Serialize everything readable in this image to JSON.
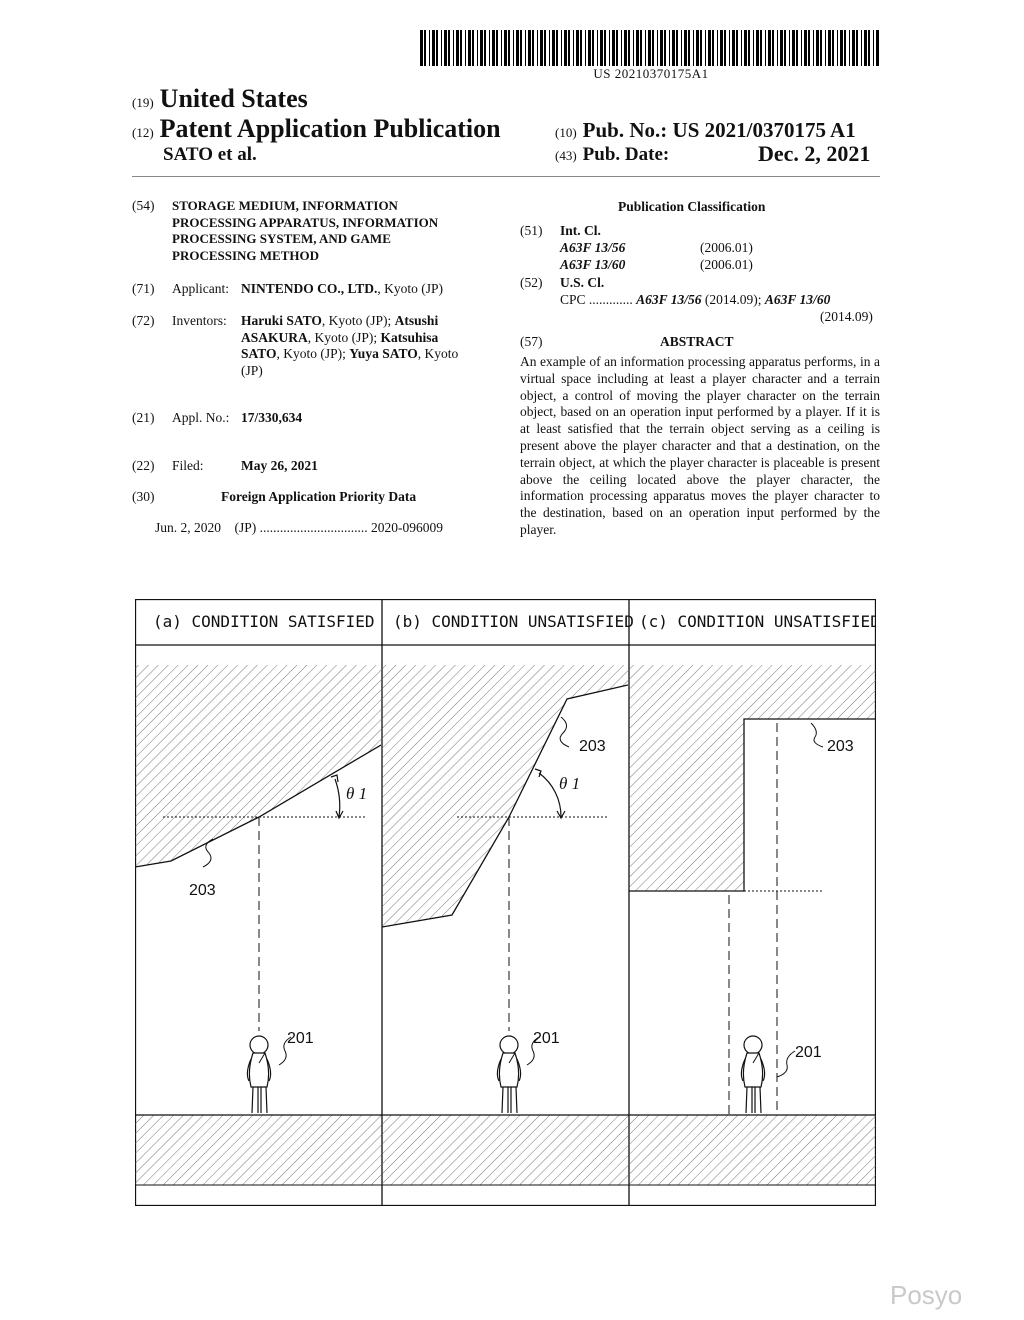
{
  "header": {
    "barcode_number": "US 20210370175A1",
    "code_19": "(19)",
    "country": "United States",
    "code_12": "(12)",
    "doc_type": "Patent Application Publication",
    "inventor_short": "SATO et al.",
    "code_10": "(10)",
    "pub_no_label": "Pub. No.:",
    "pub_no": "US 2021/0370175 A1",
    "code_43": "(43)",
    "pub_date_label": "Pub. Date:",
    "pub_date": "Dec. 2, 2021"
  },
  "left": {
    "title_code": "(54)",
    "title_lines": [
      "STORAGE MEDIUM, INFORMATION",
      "PROCESSING APPARATUS, INFORMATION",
      "PROCESSING SYSTEM, AND GAME",
      "PROCESSING METHOD"
    ],
    "applicant_code": "(71)",
    "applicant_label": "Applicant:",
    "applicant_name": "NINTENDO CO., LTD.",
    "applicant_loc": ", Kyoto (JP)",
    "inventors_code": "(72)",
    "inventors_label": "Inventors:",
    "inventors_lines": [
      {
        "bold": "Haruki SATO",
        "plain": ", Kyoto (JP); ",
        "bold2": "Atsushi"
      },
      {
        "bold": "ASAKURA",
        "plain": ", Kyoto (JP); ",
        "bold2": "Katsuhisa"
      },
      {
        "bold": "SATO",
        "plain": ", Kyoto (JP); ",
        "bold2": "Yuya SATO",
        "plain2": ", Kyoto"
      },
      {
        "plain": "(JP)"
      }
    ],
    "appl_code": "(21)",
    "appl_label": "Appl. No.:",
    "appl_no": "17/330,634",
    "filed_code": "(22)",
    "filed_label": "Filed:",
    "filed_date": "May 26, 2021",
    "foreign_code": "(30)",
    "foreign_heading": "Foreign Application Priority Data",
    "foreign_date": "Jun. 2, 2020",
    "foreign_country": "(JP)",
    "foreign_dots": "................................",
    "foreign_number": "2020-096009"
  },
  "right": {
    "classification_heading": "Publication Classification",
    "intcl_code": "(51)",
    "intcl_label": "Int. Cl.",
    "intcl_items": [
      {
        "code": "A63F 13/56",
        "year": "(2006.01)"
      },
      {
        "code": "A63F 13/60",
        "year": "(2006.01)"
      }
    ],
    "uscl_code": "(52)",
    "uscl_label": "U.S. Cl.",
    "cpc_label": "CPC",
    "cpc_dots": ".............",
    "cpc_code1": "A63F 13/56",
    "cpc_year1": " (2014.09); ",
    "cpc_code2": "A63F 13/60",
    "cpc_year2": "(2014.09)",
    "abstract_code": "(57)",
    "abstract_heading": "ABSTRACT",
    "abstract_text": "An example of an information processing apparatus performs, in a virtual space including at least a player character and a terrain object, a control of moving the player character on the terrain object, based on an operation input performed by a player. If it is at least satisfied that the terrain object serving as a ceiling is present above the player character and that a destination, on the terrain object, at which the player character is placeable is present above the ceiling located above the player character, the information processing apparatus moves the player character to the destination, based on an operation input performed by the player."
  },
  "figure": {
    "panels": [
      {
        "label": "(a) CONDITION SATISFIED",
        "terrain_ref": "203",
        "char_ref": "201",
        "angle": "θ 1"
      },
      {
        "label": "(b) CONDITION UNSATISFIED",
        "terrain_ref": "203",
        "char_ref": "201",
        "angle": "θ 1"
      },
      {
        "label": "(c) CONDITION UNSATISFIED",
        "terrain_ref": "203",
        "char_ref": "201"
      }
    ]
  },
  "watermark": "Posyo"
}
